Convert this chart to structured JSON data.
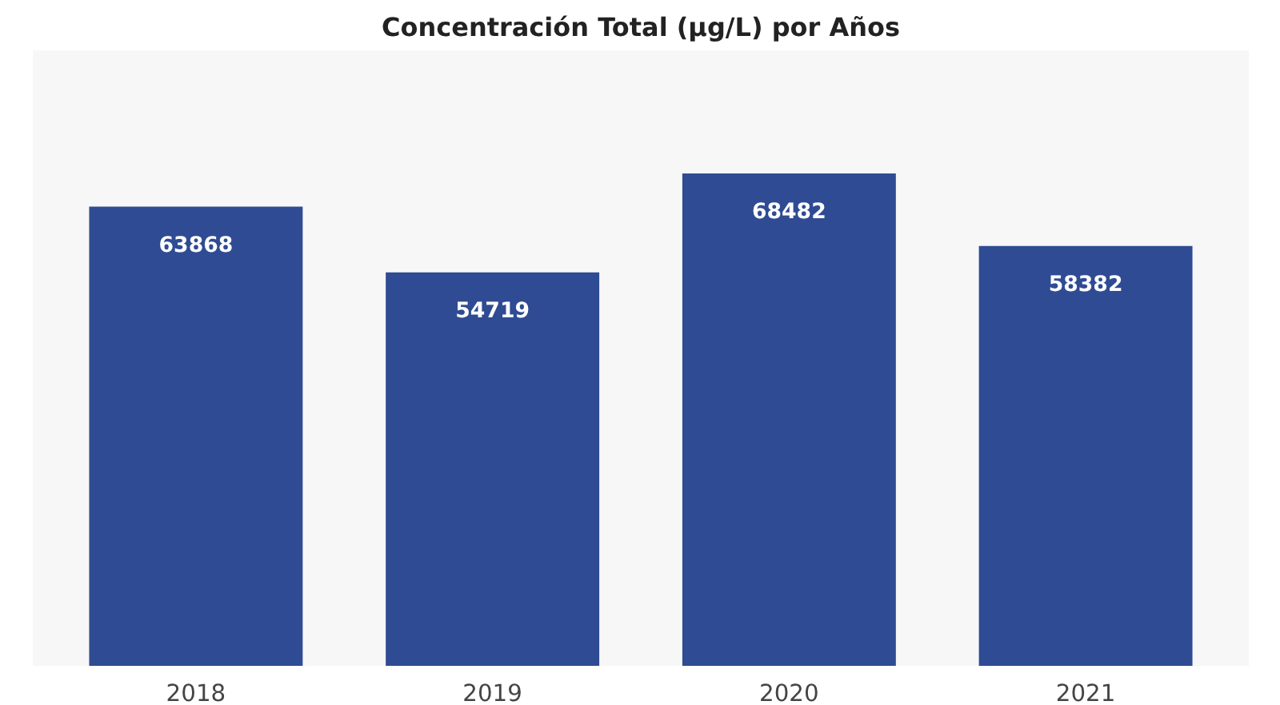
{
  "chart_data": {
    "type": "bar",
    "title": "Concentración Total (µg/L) por Años",
    "categories": [
      "2018",
      "2019",
      "2020",
      "2021"
    ],
    "values": [
      63868,
      54719,
      68482,
      58382
    ],
    "color": "#2f4b93",
    "data_labels": true
  }
}
